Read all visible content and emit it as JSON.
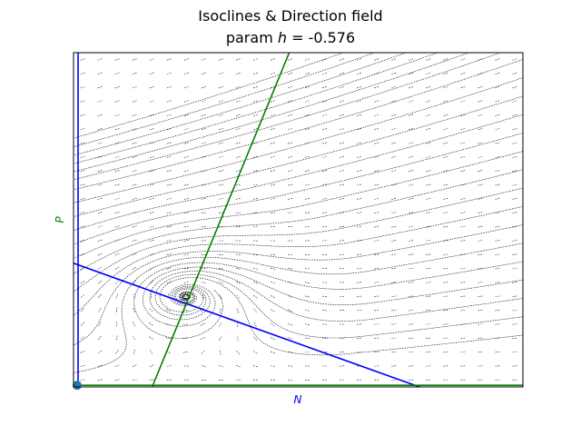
{
  "chart_data": {
    "type": "vector-field",
    "title": "Isoclines & Direction field",
    "subtitle_prefix": "param ",
    "subtitle_var": "h",
    "subtitle_value": " = -0.576",
    "xlabel": "N",
    "ylabel": "P",
    "xlabel_color": "#0000ff",
    "ylabel_color": "#008000",
    "tick_labels_visible": false,
    "series": [
      {
        "name": "N-isocline (N = 0)",
        "color": "#0000ff",
        "points": [
          [
            0.01,
            0.0
          ],
          [
            0.01,
            1.0
          ]
        ]
      },
      {
        "name": "N-isocline (sloped)",
        "color": "#0000ff",
        "points": [
          [
            0.0,
            0.37
          ],
          [
            0.77,
            0.0
          ]
        ]
      },
      {
        "name": "P-isocline (P = 0)",
        "color": "#008000",
        "points": [
          [
            0.0,
            0.005
          ],
          [
            1.0,
            0.005
          ]
        ]
      },
      {
        "name": "P-isocline (sloped)",
        "color": "#008000",
        "points": [
          [
            0.175,
            0.0
          ],
          [
            0.48,
            1.0
          ]
        ]
      }
    ],
    "equilibrium_point": {
      "x": 0.008,
      "y": 0.005,
      "color": "#1f77b4"
    },
    "spiral_center": {
      "x": 0.25,
      "y": 0.27
    },
    "colors": {
      "field_dark": "#2a2a4a",
      "field_purple": "#7a3aa0",
      "trajectory": "#000000"
    }
  }
}
